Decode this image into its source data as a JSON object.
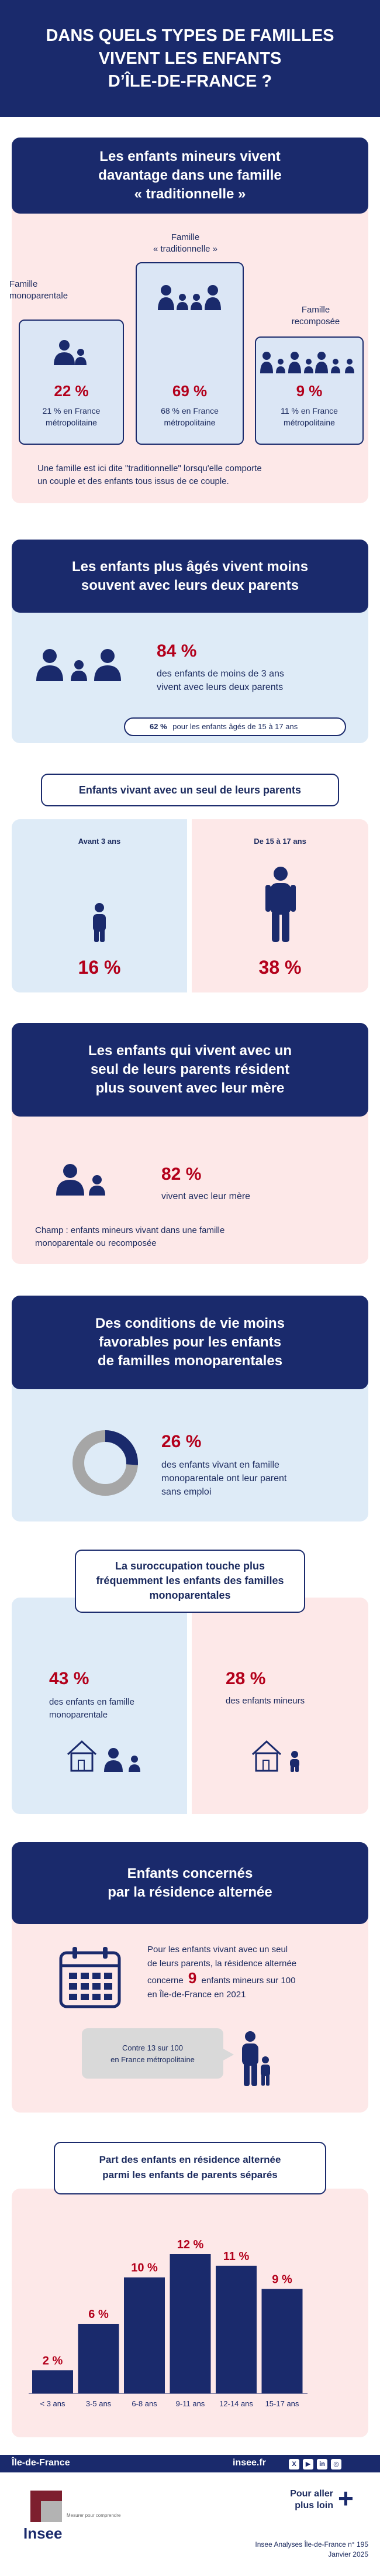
{
  "header": {
    "title_l1": "DANS QUELS TYPES DE FAMILLES",
    "title_l2": "VIVENT LES ENFANTS",
    "title_l3": "D’ÎLE-DE-FRANCE ?"
  },
  "s1": {
    "title_l1": "Les enfants mineurs vivent",
    "title_l2": "davantage dans une famille",
    "title_l3": "« traditionnelle »",
    "mono_label_l1": "Famille",
    "mono_label_l2": "monoparentale",
    "trad_label_l1": "Famille",
    "trad_label_l2": "« traditionnelle »",
    "recomp_label_l1": "Famille",
    "recomp_label_l2": "recomposée",
    "mono_pct": "22 %",
    "mono_fr_l1": "21 % en France",
    "mono_fr_l2": "métropolitaine",
    "trad_pct": "69 %",
    "trad_fr_l1": "68 % en France",
    "trad_fr_l2": "métropolitaine",
    "recomp_pct": "9 %",
    "recomp_fr_l1": "11 % en France",
    "recomp_fr_l2": "métropolitaine",
    "note_l1": "Une famille est ici dite \"traditionnelle\" lorsqu'elle comporte",
    "note_l2": "un couple et des enfants tous issus de ce couple."
  },
  "s2": {
    "title_l1": "Les enfants plus âgés vivent moins",
    "title_l2": "souvent avec leurs deux parents",
    "pct": "84 %",
    "desc_l1": "des enfants de moins de 3 ans",
    "desc_l2": "vivent avec leurs deux parents",
    "pill_pct": "62 %",
    "pill_text": "pour les enfants âgés de 15 à 17 ans"
  },
  "s3": {
    "title": "Enfants vivant avec un seul de leurs parents",
    "left_label": "Avant 3 ans",
    "left_pct": "16 %",
    "right_label": "De 15 à 17 ans",
    "right_pct": "38 %"
  },
  "s4": {
    "title_l1": "Les enfants qui vivent avec un",
    "title_l2": "seul de leurs parents résident",
    "title_l3": "plus souvent avec leur mère",
    "pct": "82 %",
    "desc": "vivent avec leur mère",
    "champ_l1": "Champ : enfants mineurs vivant dans une famille",
    "champ_l2": "monoparentale ou recomposée"
  },
  "s5": {
    "title_l1": "Des conditions de vie moins",
    "title_l2": "favorables pour les enfants",
    "title_l3": "de familles monoparentales",
    "pct": "26 %",
    "pct_value": 26,
    "desc_l1": "des enfants vivant en famille",
    "desc_l2": "monoparentale ont leur parent",
    "desc_l3": "sans emploi"
  },
  "s6": {
    "title_l1": "La suroccupation touche plus",
    "title_l2": "fréquemment les enfants des familles",
    "title_l3": "monoparentales",
    "left_pct": "43 %",
    "left_desc_l1": "des enfants en famille",
    "left_desc_l2": "monoparentale",
    "right_pct": "28 %",
    "right_desc": "des enfants mineurs"
  },
  "s7": {
    "title_l1": "Enfants concernés",
    "title_l2": "par la résidence alternée",
    "text_l1": "Pour les enfants vivant avec un seul",
    "text_l2": "de leurs parents, la résidence alternée",
    "text_l3a": "concerne",
    "text_l3_num": "9",
    "text_l3b": "enfants mineurs sur 100",
    "text_l4": "en Île-de-France en 2021",
    "bubble_l1": "Contre 13 sur 100",
    "bubble_l2": "en France métropolitaine"
  },
  "s8": {
    "title_l1": "Part des enfants en résidence alternée",
    "title_l2": "parmi les enfants de parents séparés"
  },
  "chart_data": {
    "type": "bar",
    "categories": [
      "< 3 ans",
      "3-5 ans",
      "6-8 ans",
      "9-11 ans",
      "12-14 ans",
      "15-17 ans"
    ],
    "values": [
      2,
      6,
      10,
      12,
      11,
      9
    ],
    "labels": [
      "2 %",
      "6 %",
      "10 %",
      "12 %",
      "11 %",
      "9 %"
    ],
    "title": "Part des enfants en résidence alternée parmi les enfants de parents séparés",
    "xlabel": "",
    "ylabel": "",
    "ylim": [
      0,
      12
    ]
  },
  "footer": {
    "region": "Île-de-France",
    "site": "insee.fr",
    "more_l1": "Pour aller",
    "more_l2": "plus loin",
    "logo": "Insee",
    "logo_tag": "Mesurer pour comprendre",
    "ref_l1": "Insee Analyses Île-de-France n° 195",
    "ref_l2": "Janvier 2025"
  },
  "colors": {
    "navy": "#1a2a6c",
    "red": "#b3001b",
    "pink": "#fde8e8",
    "blue": "#deebf7",
    "grey": "#a6a6a6"
  }
}
